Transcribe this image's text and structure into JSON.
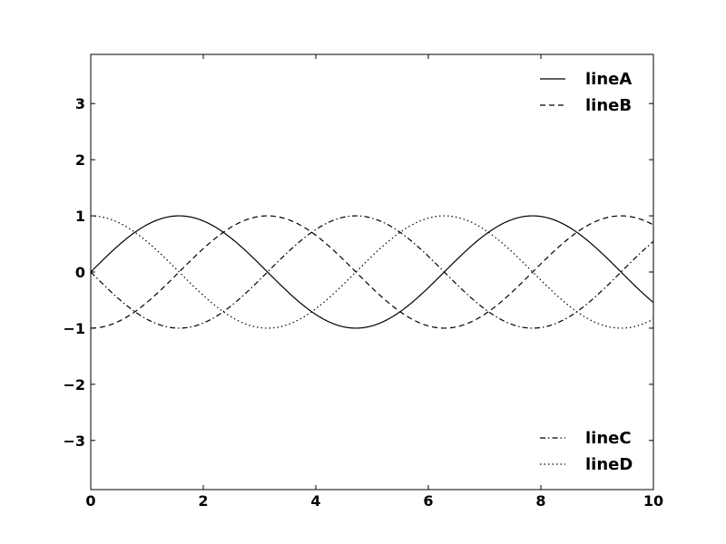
{
  "chart_data": {
    "type": "line",
    "title": "",
    "xlabel": "",
    "ylabel": "",
    "xlim": [
      0,
      10
    ],
    "ylim": [
      -3.875,
      3.875
    ],
    "x_ticks": [
      0,
      2,
      4,
      6,
      8,
      10
    ],
    "y_ticks": [
      -3,
      -2,
      -1,
      0,
      1,
      2,
      3
    ],
    "x_tick_labels": [
      "0",
      "2",
      "4",
      "6",
      "8",
      "10"
    ],
    "y_tick_labels": [
      "−3",
      "−2",
      "−1",
      "0",
      "1",
      "2",
      "3"
    ],
    "grid": false,
    "series": [
      {
        "name": "lineA",
        "function": "sin(x)",
        "linestyle": "solid",
        "color": "#000000",
        "legend": "upper-right"
      },
      {
        "name": "lineB",
        "function": "-cos(x)",
        "linestyle": "dashed",
        "color": "#000000",
        "legend": "upper-right"
      },
      {
        "name": "lineC",
        "function": "-sin(x)",
        "linestyle": "dashdot",
        "color": "#000000",
        "legend": "lower-right"
      },
      {
        "name": "lineD",
        "function": "cos(x)",
        "linestyle": "dotted",
        "color": "#000000",
        "legend": "lower-right"
      }
    ],
    "legends": [
      {
        "position": "upper-right",
        "entries": [
          "lineA",
          "lineB"
        ]
      },
      {
        "position": "lower-right",
        "entries": [
          "lineC",
          "lineD"
        ]
      }
    ]
  }
}
